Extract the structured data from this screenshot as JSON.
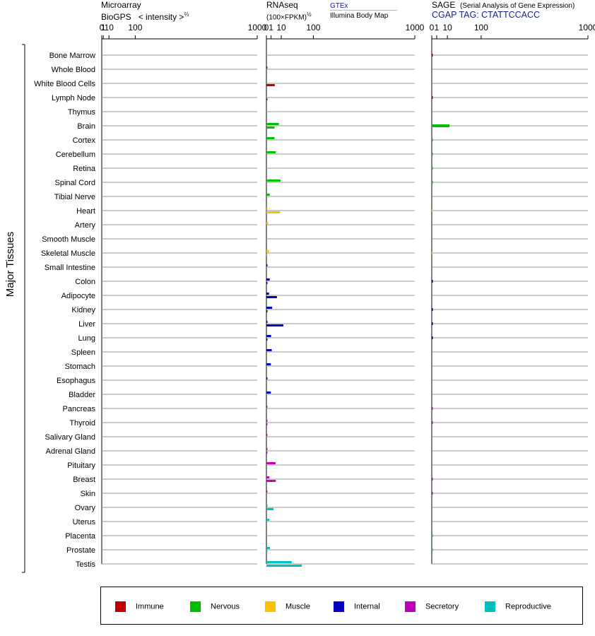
{
  "headers": {
    "microarray_line1": "Microarray",
    "microarray_line2": "BioGPS",
    "microarray_intensity": "< intensity >",
    "microarray_exponent": "⅔",
    "rnaseq_line1": "RNAseq",
    "rnaseq_line2": "(100×FPKM)",
    "rnaseq_exponent": "½",
    "gtex_label": "GTEx",
    "illumina_label": "Illumina Body Map",
    "sage_line1": "SAGE",
    "sage_desc": "(Serial Analysis of Gene Expression)",
    "sage_tag": "CGAP TAG: CTATTCCACC"
  },
  "chart_data": {
    "type": "bar",
    "scale": "power-law: microarray intensity^(2/3), RNAseq sqrt(100×FPKM)",
    "axis_ticks": [
      "0",
      "1",
      "10",
      "100",
      "1000"
    ],
    "axis_tick_values": [
      0,
      1,
      10,
      100,
      1000
    ],
    "group_label": "Major Tissues",
    "tissues": [
      {
        "name": "Bone Marrow",
        "group": "Immune",
        "gtex": null,
        "ibm": null,
        "sage": 0.05
      },
      {
        "name": "Whole Blood",
        "group": "Immune",
        "gtex": 0.05,
        "ibm": null,
        "sage": null
      },
      {
        "name": "White Blood Cells",
        "group": "Immune",
        "gtex": null,
        "ibm": 3.2,
        "sage": null
      },
      {
        "name": "Lymph Node",
        "group": "Immune",
        "gtex": null,
        "ibm": 0.05,
        "sage": 0.05
      },
      {
        "name": "Thymus",
        "group": "Immune",
        "gtex": null,
        "ibm": null,
        "sage": null
      },
      {
        "name": "Brain",
        "group": "Nervous",
        "gtex": 7.0,
        "ibm": 3.0,
        "sage": 13.0
      },
      {
        "name": "Cortex",
        "group": "Nervous",
        "gtex": 3.0,
        "ibm": null,
        "sage": 0.03
      },
      {
        "name": "Cerebellum",
        "group": "Nervous",
        "gtex": 4.0,
        "ibm": null,
        "sage": 0.03
      },
      {
        "name": "Retina",
        "group": "Nervous",
        "gtex": null,
        "ibm": null,
        "sage": 0.03
      },
      {
        "name": "Spinal Cord",
        "group": "Nervous",
        "gtex": 9.0,
        "ibm": null,
        "sage": 0.03
      },
      {
        "name": "Tibial Nerve",
        "group": "Nervous",
        "gtex": 0.5,
        "ibm": null,
        "sage": null
      },
      {
        "name": "Heart",
        "group": "Muscle",
        "gtex": 0.03,
        "ibm": 8.5,
        "sage": 0.01
      },
      {
        "name": "Artery",
        "group": "Muscle",
        "gtex": 0.15,
        "ibm": null,
        "sage": null
      },
      {
        "name": "Smooth Muscle",
        "group": "Muscle",
        "gtex": null,
        "ibm": null,
        "sage": null
      },
      {
        "name": "Skeletal Muscle",
        "group": "Muscle",
        "gtex": 0.3,
        "ibm": 0.03,
        "sage": 0.01
      },
      {
        "name": "Small Intestine",
        "group": "Internal",
        "gtex": 0.05,
        "ibm": null,
        "sage": null
      },
      {
        "name": "Colon",
        "group": "Internal",
        "gtex": 0.5,
        "ibm": 0.03,
        "sage": 0.05
      },
      {
        "name": "Adipocyte",
        "group": "Internal",
        "gtex": 0.3,
        "ibm": 5.0,
        "sage": null
      },
      {
        "name": "Kidney",
        "group": "Internal",
        "gtex": 1.5,
        "ibm": 0.05,
        "sage": 0.05
      },
      {
        "name": "Liver",
        "group": "Internal",
        "gtex": 0.05,
        "ibm": 13.0,
        "sage": 0.05
      },
      {
        "name": "Lung",
        "group": "Internal",
        "gtex": 1.0,
        "ibm": 0.05,
        "sage": 0.05
      },
      {
        "name": "Spleen",
        "group": "Internal",
        "gtex": 1.3,
        "ibm": null,
        "sage": null
      },
      {
        "name": "Stomach",
        "group": "Internal",
        "gtex": 0.9,
        "ibm": null,
        "sage": null
      },
      {
        "name": "Esophagus",
        "group": "Internal",
        "gtex": 0.05,
        "ibm": null,
        "sage": null
      },
      {
        "name": "Bladder",
        "group": "Internal",
        "gtex": 0.9,
        "ibm": null,
        "sage": null
      },
      {
        "name": "Pancreas",
        "group": "Secretory",
        "gtex": 0.05,
        "ibm": null,
        "sage": 0.05
      },
      {
        "name": "Thyroid",
        "group": "Secretory",
        "gtex": 0.05,
        "ibm": 0.05,
        "sage": 0.05
      },
      {
        "name": "Salivary Gland",
        "group": "Secretory",
        "gtex": 0.05,
        "ibm": null,
        "sage": null
      },
      {
        "name": "Adrenal Gland",
        "group": "Secretory",
        "gtex": 0.05,
        "ibm": 0.05,
        "sage": null
      },
      {
        "name": "Pituitary",
        "group": "Secretory",
        "gtex": 3.8,
        "ibm": null,
        "sage": null
      },
      {
        "name": "Breast",
        "group": "Secretory",
        "gtex": 0.4,
        "ibm": 4.0,
        "sage": 0.05
      },
      {
        "name": "Skin",
        "group": "Secretory",
        "gtex": 0.05,
        "ibm": null,
        "sage": 0.05
      },
      {
        "name": "Ovary",
        "group": "Reproductive",
        "gtex": 0.03,
        "ibm": 2.3,
        "sage": null
      },
      {
        "name": "Uterus",
        "group": "Reproductive",
        "gtex": 0.4,
        "ibm": null,
        "sage": null
      },
      {
        "name": "Placenta",
        "group": "Reproductive",
        "gtex": null,
        "ibm": null,
        "sage": 0.05
      },
      {
        "name": "Prostate",
        "group": "Reproductive",
        "gtex": 0.6,
        "ibm": 0.05,
        "sage": 0.05
      },
      {
        "name": "Testis",
        "group": "Reproductive",
        "gtex": 29.0,
        "ibm": 57.0,
        "sage": null
      }
    ],
    "legend": [
      {
        "name": "Immune",
        "color": "#c00000"
      },
      {
        "name": "Nervous",
        "color": "#00c000"
      },
      {
        "name": "Muscle",
        "color": "#ffc000"
      },
      {
        "name": "Internal",
        "color": "#0000c0"
      },
      {
        "name": "Secretory",
        "color": "#c000c0"
      },
      {
        "name": "Reproductive",
        "color": "#00c0c0"
      }
    ]
  }
}
